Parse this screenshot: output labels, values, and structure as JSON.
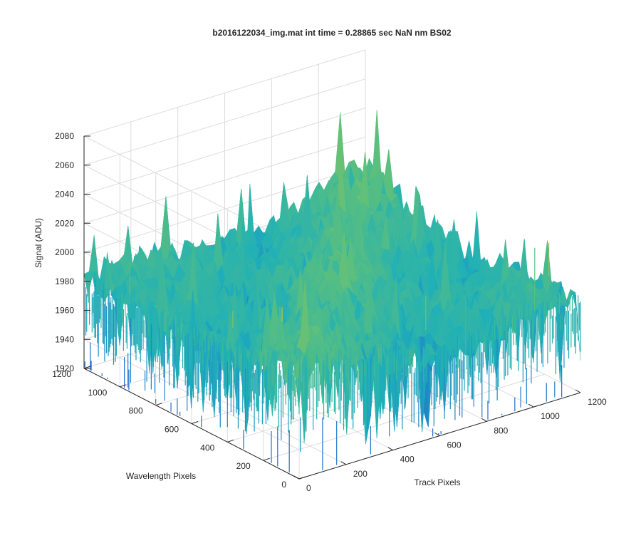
{
  "chart_data": {
    "type": "surface",
    "title": "b2016122034_img.mat int time = 0.28865 sec  NaN nm BS02",
    "xlabel": "Track Pixels",
    "ylabel": "Wavelength Pixels",
    "zlabel": "Signal (ADU)",
    "xlim": [
      0,
      1200
    ],
    "ylim": [
      0,
      1200
    ],
    "zlim": [
      1920,
      2080
    ],
    "x_ticks": [
      "0",
      "200",
      "400",
      "600",
      "800",
      "1000",
      "1200"
    ],
    "y_ticks": [
      "0",
      "200",
      "400",
      "600",
      "800",
      "1000",
      "1200"
    ],
    "z_ticks": [
      "1920",
      "1940",
      "1960",
      "1980",
      "2000",
      "2020",
      "2040",
      "2060",
      "2080"
    ],
    "grid": true,
    "colormap": "parula",
    "surface_summary": {
      "mean_signal": 1985,
      "typical_min": 1935,
      "typical_max": 2045,
      "high_region": "diagonal ridge through center (~2005–2030)"
    },
    "colors": {
      "low": "#1f6fd1",
      "mid": "#1fb0b8",
      "midhigh": "#5fc07a",
      "high": "#c9c23a"
    }
  }
}
